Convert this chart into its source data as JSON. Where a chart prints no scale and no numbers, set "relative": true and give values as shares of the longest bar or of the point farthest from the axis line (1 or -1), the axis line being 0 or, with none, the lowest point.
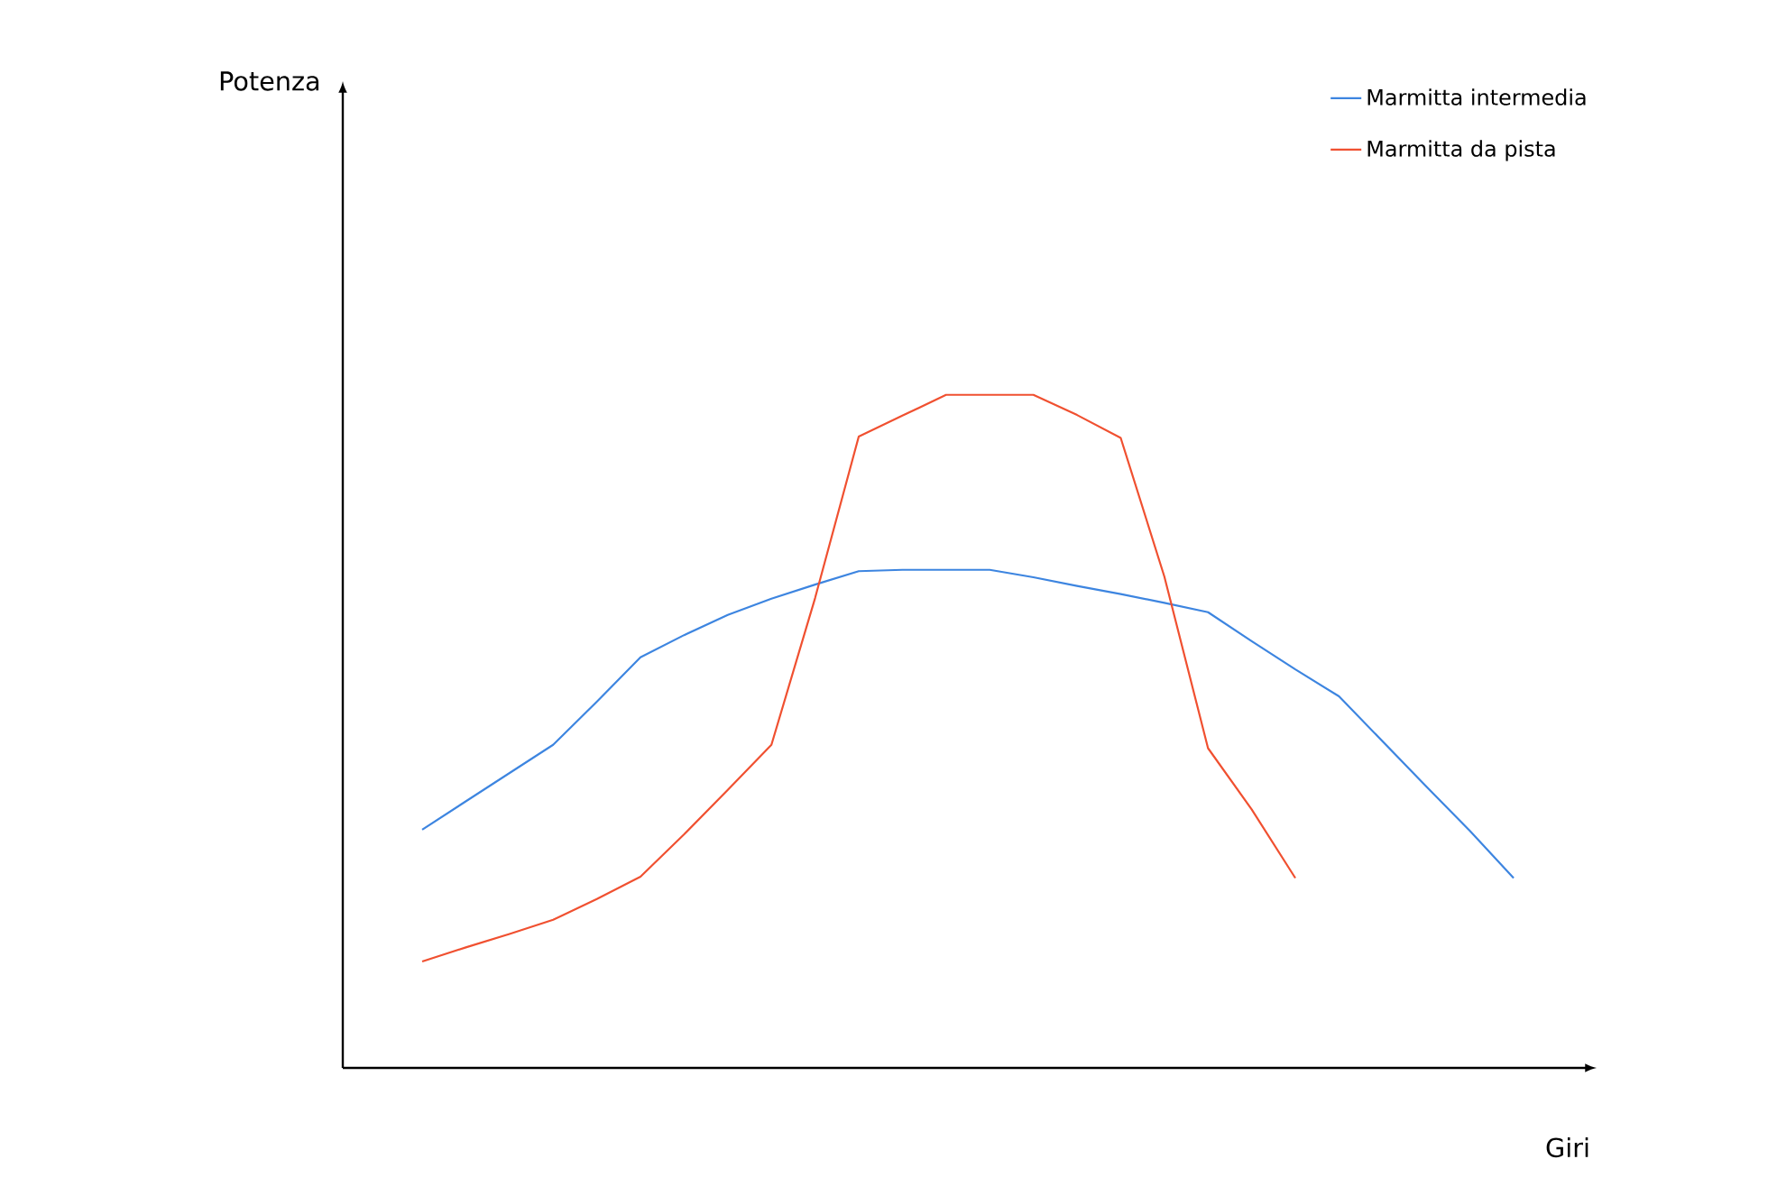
{
  "chart_data": {
    "type": "line",
    "relative": true,
    "xlabel": "Giri",
    "annotations": [
      "Potenza"
    ],
    "legend": "top right",
    "categories": [
      null,
      null,
      null,
      null,
      null,
      null,
      null,
      null,
      null,
      null,
      null,
      null,
      null,
      null,
      null,
      null,
      null,
      null,
      null,
      null,
      null,
      null,
      null,
      null,
      null,
      null
    ],
    "series": [
      {
        "name": "Marmitta intermedia",
        "color": "#3d85e0",
        "values": [
          0.354,
          0.396,
          0.438,
          0.48,
          0.544,
          0.61,
          0.643,
          0.673,
          0.697,
          0.718,
          0.738,
          0.74,
          0.74,
          0.74,
          0.729,
          0.716,
          0.704,
          0.691,
          0.677,
          0.634,
          0.592,
          0.552,
          0.485,
          0.418,
          0.352,
          0.282
        ]
      },
      {
        "name": "Marmitta da pista",
        "color": "#f05030",
        "values": [
          0.158,
          0.179,
          0.199,
          0.22,
          0.251,
          0.284,
          0.347,
          0.413,
          0.48,
          0.698,
          0.938,
          0.969,
          1,
          1,
          1,
          0.97,
          0.936,
          0.73,
          0.475,
          0.384,
          0.282,
          null,
          null,
          null,
          null,
          null
        ]
      }
    ]
  }
}
